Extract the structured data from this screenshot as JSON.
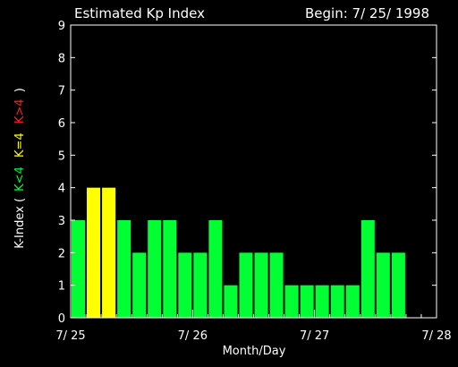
{
  "chart_data": {
    "type": "bar",
    "title": "Estimated Kp Index",
    "begin_label": "Begin: 7/ 25/ 1998",
    "xlabel": "Month/Day",
    "ylabel": {
      "prefix": "K-Index (",
      "low": "K<4",
      "mid": "K=4",
      "high": "K>4",
      "suffix": ")"
    },
    "ylim": [
      0,
      9
    ],
    "yticks": [
      "0",
      "1",
      "2",
      "3",
      "4",
      "5",
      "6",
      "7",
      "8",
      "9"
    ],
    "xticks": [
      "7/ 25",
      "7/ 26",
      "7/ 27",
      "7/ 28"
    ],
    "bins_per_day": 8,
    "values": [
      3,
      4,
      4,
      3,
      2,
      3,
      3,
      2,
      2,
      3,
      1,
      2,
      2,
      2,
      1,
      1,
      1,
      1,
      1,
      3,
      2,
      2
    ],
    "colors": {
      "low": "#00ff33",
      "mid": "#ffff00",
      "high": "#ff2020",
      "axes": "#ffffff",
      "background": "#000000"
    }
  }
}
